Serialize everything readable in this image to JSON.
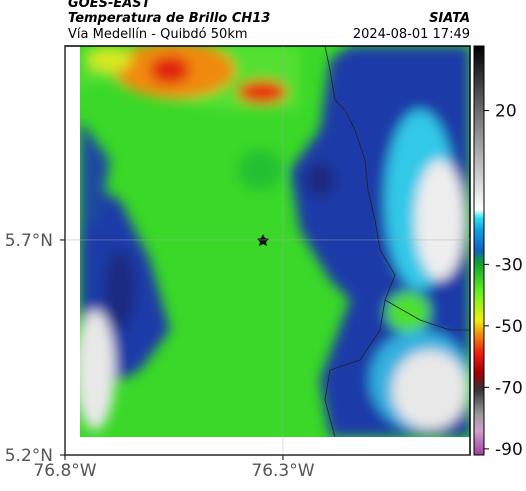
{
  "header": {
    "source": "GOES-EAST",
    "title": "Temperatura de Brillo CH13",
    "org": "SIATA",
    "subtitle": "Vía Medellín - Quibdó 50km",
    "datetime": "2024-08-01 17:49"
  },
  "map": {
    "xlim": [
      -76.8,
      -75.871
    ],
    "ylim": [
      5.2,
      6.151
    ],
    "xticks": [
      {
        "value": -76.8,
        "label": "76.8°W"
      },
      {
        "value": -76.3,
        "label": "76.3°W"
      }
    ],
    "yticks": [
      {
        "value": 5.2,
        "label": "5.2°N"
      },
      {
        "value": 5.7,
        "label": "5.7°N"
      }
    ],
    "grid": true
  },
  "colorbar": {
    "lim": [
      -92,
      41
    ],
    "ticks": [
      20,
      -30,
      -50,
      -70,
      -90
    ]
  }
}
